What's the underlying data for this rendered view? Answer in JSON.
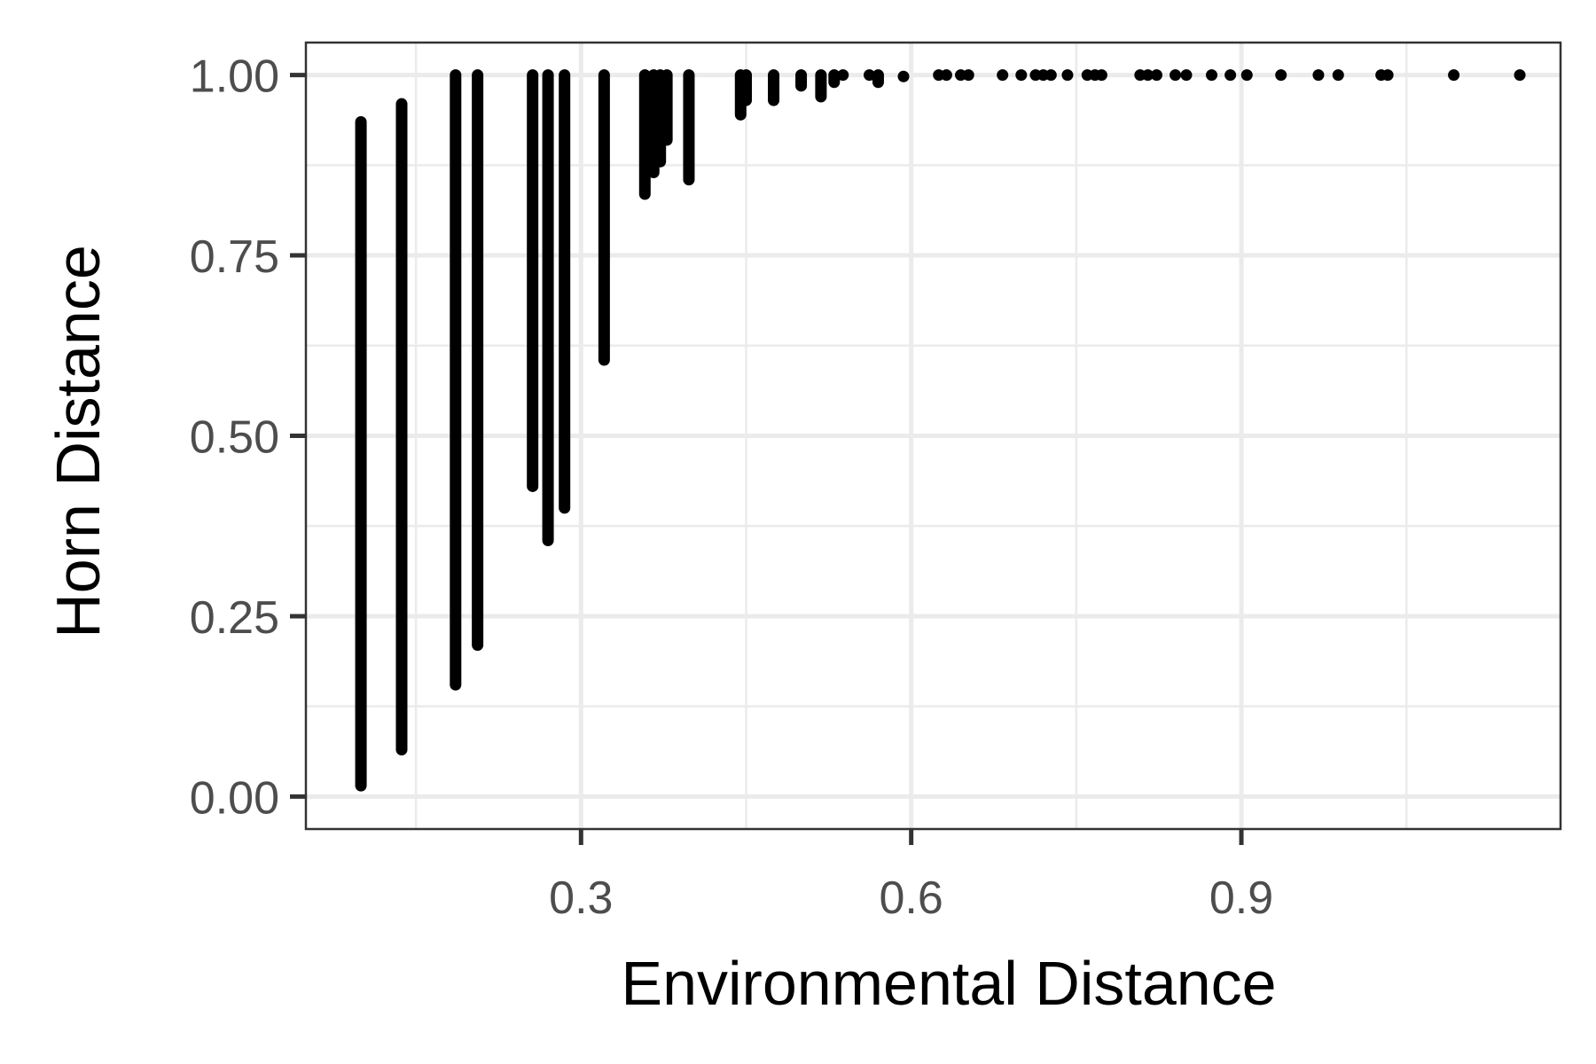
{
  "chart_data": {
    "type": "scatter",
    "xlabel": "Environmental Distance",
    "ylabel": "Horn Distance",
    "xlim": [
      0.05,
      1.19
    ],
    "ylim": [
      -0.045,
      1.045
    ],
    "x_ticks": [
      0.3,
      0.6,
      0.9
    ],
    "x_tick_labels": [
      "0.3",
      "0.6",
      "0.9"
    ],
    "x_minor_ticks": [
      0.15,
      0.45,
      0.75,
      1.05
    ],
    "y_ticks": [
      0,
      0.25,
      0.5,
      0.75,
      1
    ],
    "y_tick_labels": [
      "0.00",
      "0.25",
      "0.50",
      "0.75",
      "1.00"
    ],
    "y_minor_ticks": [
      0.125,
      0.375,
      0.625,
      0.875
    ],
    "grid": true,
    "theme": "bw",
    "point_color": "#000000",
    "columns": [
      {
        "x": 0.1,
        "y_min": 0.015,
        "y_max": 0.935
      },
      {
        "x": 0.137,
        "y_min": 0.065,
        "y_max": 0.96
      },
      {
        "x": 0.186,
        "y_min": 0.155,
        "y_max": 1.0
      },
      {
        "x": 0.206,
        "y_min": 0.21,
        "y_max": 1.0
      },
      {
        "x": 0.256,
        "y_min": 0.43,
        "y_max": 1.0
      },
      {
        "x": 0.27,
        "y_min": 0.355,
        "y_max": 1.0
      },
      {
        "x": 0.285,
        "y_min": 0.4,
        "y_max": 1.0
      },
      {
        "x": 0.321,
        "y_min": 0.605,
        "y_max": 1.0
      },
      {
        "x": 0.358,
        "y_min": 0.835,
        "y_max": 1.0
      },
      {
        "x": 0.366,
        "y_min": 0.865,
        "y_max": 1.0
      },
      {
        "x": 0.372,
        "y_min": 0.88,
        "y_max": 1.0
      },
      {
        "x": 0.378,
        "y_min": 0.91,
        "y_max": 1.0
      },
      {
        "x": 0.398,
        "y_min": 0.855,
        "y_max": 1.0
      },
      {
        "x": 0.445,
        "y_min": 0.945,
        "y_max": 1.0
      },
      {
        "x": 0.45,
        "y_min": 0.965,
        "y_max": 1.0
      },
      {
        "x": 0.475,
        "y_min": 0.965,
        "y_max": 1.0
      },
      {
        "x": 0.5,
        "y_min": 0.985,
        "y_max": 1.0
      },
      {
        "x": 0.518,
        "y_min": 0.97,
        "y_max": 1.0
      },
      {
        "x": 0.53,
        "y_min": 0.99,
        "y_max": 1.0
      },
      {
        "x": 0.57,
        "y_min": 0.99,
        "y_max": 1.0
      }
    ],
    "points": [
      {
        "x": 0.538,
        "y": 1.0
      },
      {
        "x": 0.562,
        "y": 1.0
      },
      {
        "x": 0.593,
        "y": 0.998
      },
      {
        "x": 0.625,
        "y": 1.0
      },
      {
        "x": 0.632,
        "y": 1.0
      },
      {
        "x": 0.645,
        "y": 1.0
      },
      {
        "x": 0.652,
        "y": 1.0
      },
      {
        "x": 0.683,
        "y": 1.0
      },
      {
        "x": 0.7,
        "y": 1.0
      },
      {
        "x": 0.713,
        "y": 1.0
      },
      {
        "x": 0.72,
        "y": 1.0
      },
      {
        "x": 0.727,
        "y": 1.0
      },
      {
        "x": 0.742,
        "y": 1.0
      },
      {
        "x": 0.76,
        "y": 1.0
      },
      {
        "x": 0.767,
        "y": 1.0
      },
      {
        "x": 0.773,
        "y": 1.0
      },
      {
        "x": 0.808,
        "y": 1.0
      },
      {
        "x": 0.815,
        "y": 1.0
      },
      {
        "x": 0.823,
        "y": 1.0
      },
      {
        "x": 0.84,
        "y": 1.0
      },
      {
        "x": 0.85,
        "y": 1.0
      },
      {
        "x": 0.873,
        "y": 1.0
      },
      {
        "x": 0.89,
        "y": 1.0
      },
      {
        "x": 0.905,
        "y": 1.0
      },
      {
        "x": 0.936,
        "y": 1.0
      },
      {
        "x": 0.97,
        "y": 1.0
      },
      {
        "x": 0.988,
        "y": 1.0
      },
      {
        "x": 1.027,
        "y": 1.0
      },
      {
        "x": 1.033,
        "y": 1.0
      },
      {
        "x": 1.093,
        "y": 1.0
      },
      {
        "x": 1.153,
        "y": 1.0
      }
    ]
  }
}
